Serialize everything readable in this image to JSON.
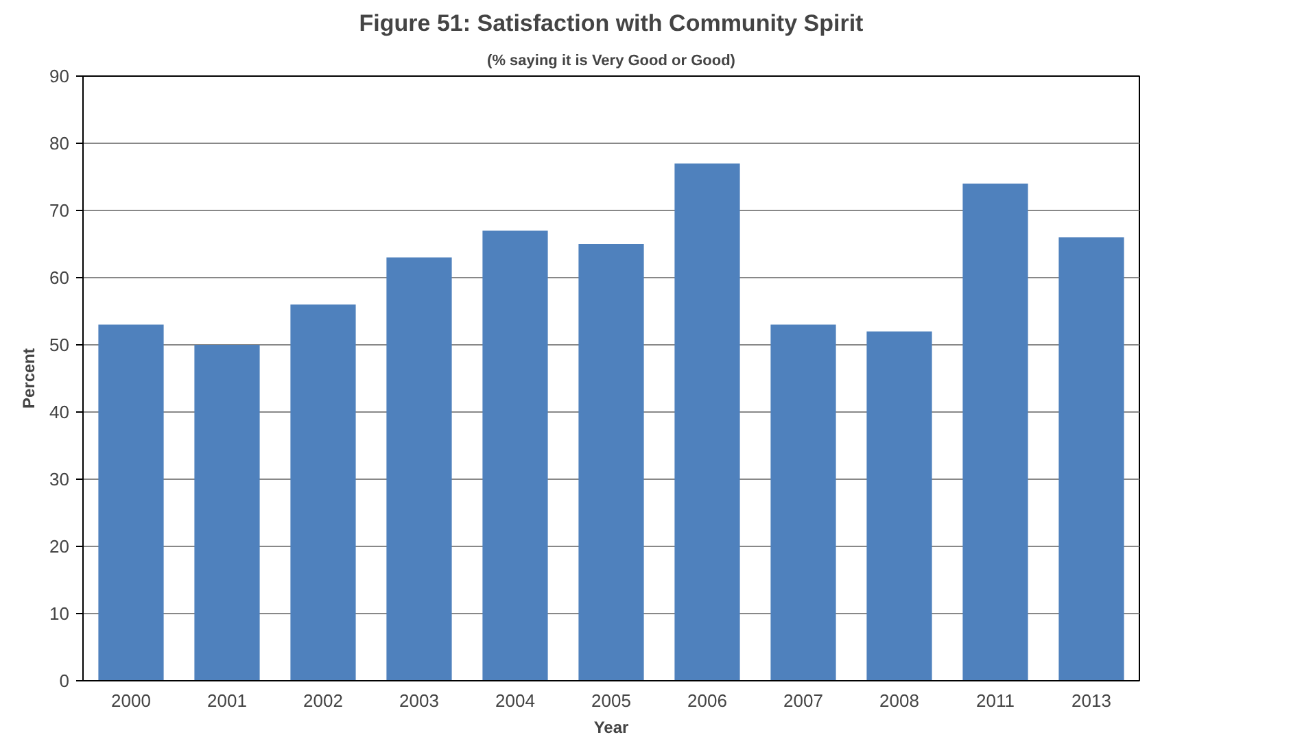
{
  "chart_data": {
    "type": "bar",
    "title": "Figure 51: Satisfaction with Community Spirit",
    "subtitle": "(% saying it is Very Good or Good)",
    "xlabel": "Year",
    "ylabel": "Percent",
    "categories": [
      "2000",
      "2001",
      "2002",
      "2003",
      "2004",
      "2005",
      "2006",
      "2007",
      "2008",
      "2011",
      "2013"
    ],
    "values": [
      53,
      50,
      56,
      63,
      67,
      65,
      77,
      53,
      52,
      74,
      66
    ],
    "color": "#4f81bd",
    "ylim": [
      0,
      90
    ],
    "yticks": [
      0,
      10,
      20,
      30,
      40,
      50,
      60,
      70,
      80,
      90
    ],
    "grid": "y"
  }
}
